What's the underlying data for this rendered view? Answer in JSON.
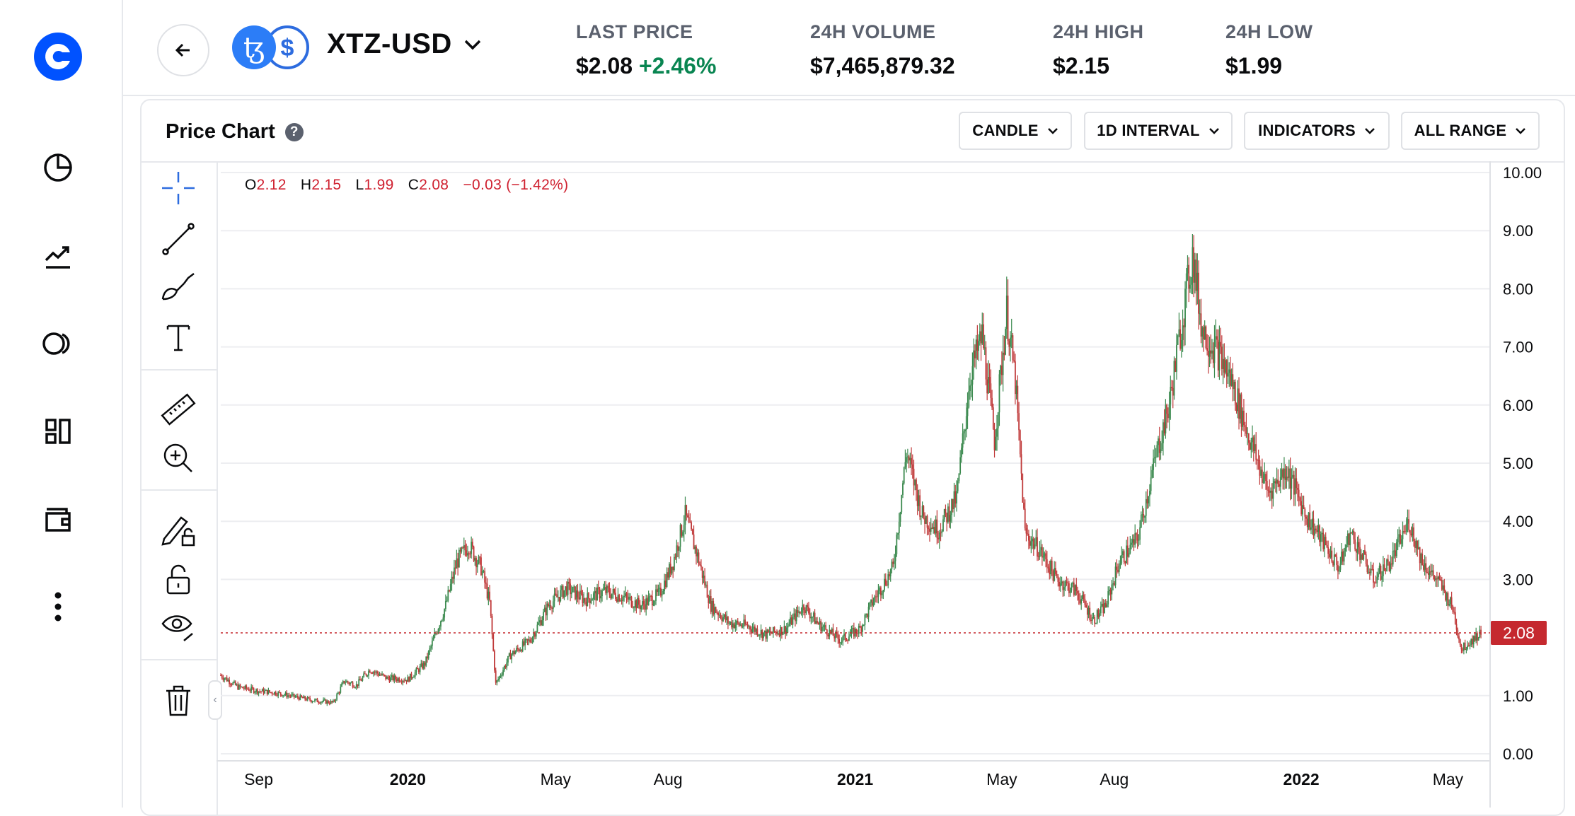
{
  "header": {
    "pair": "XTZ-USD",
    "stats": [
      {
        "label": "LAST PRICE",
        "value": "$2.08",
        "change": "+2.46%"
      },
      {
        "label": "24H VOLUME",
        "value": "$7,465,879.32"
      },
      {
        "label": "24H HIGH",
        "value": "$2.15"
      },
      {
        "label": "24H LOW",
        "value": "$1.99"
      }
    ]
  },
  "card": {
    "title": "Price Chart",
    "help": "?",
    "controls": [
      "CANDLE",
      "1D INTERVAL",
      "INDICATORS",
      "ALL RANGE"
    ]
  },
  "ohlc": {
    "o_label": "O",
    "o": "2.12",
    "h_label": "H",
    "h": "2.15",
    "l_label": "L",
    "l": "1.99",
    "c_label": "C",
    "c": "2.08",
    "change": "−0.03 (−1.42%)"
  },
  "icons": {
    "nav": [
      "coinbase-logo",
      "portfolio-pie-icon",
      "trade-chart-icon",
      "earn-icon",
      "dashboard-icon",
      "wallet-icon",
      "more-icon"
    ],
    "tools": [
      "crosshair-icon",
      "trend-line-icon",
      "brush-icon",
      "text-icon",
      "ruler-icon",
      "zoom-in-icon",
      "lock-drawing-icon",
      "unlock-icon",
      "eye-icon",
      "trash-icon"
    ]
  },
  "colors": {
    "up": "#3c8a4f",
    "down": "#c03a3a",
    "brand": "#0052ff",
    "positive_text": "#098551",
    "last_price_tag": "#c5292f"
  },
  "chart_data": {
    "type": "candlestick",
    "interval": "1D",
    "range": "ALL",
    "ylim": [
      0,
      10
    ],
    "y_ticks": [
      "10.00",
      "9.00",
      "8.00",
      "7.00",
      "6.00",
      "5.00",
      "4.00",
      "3.00",
      "1.00",
      "0.00"
    ],
    "x_ticks": [
      {
        "label": "Sep",
        "date": "2019-09",
        "major": false
      },
      {
        "label": "2020",
        "date": "2020-01",
        "major": true
      },
      {
        "label": "May",
        "date": "2020-05",
        "major": false
      },
      {
        "label": "Aug",
        "date": "2020-08",
        "major": false
      },
      {
        "label": "2021",
        "date": "2021-01",
        "major": true
      },
      {
        "label": "May",
        "date": "2021-05",
        "major": false
      },
      {
        "label": "Aug",
        "date": "2021-08",
        "major": false
      },
      {
        "label": "2022",
        "date": "2022-01",
        "major": true
      },
      {
        "label": "May",
        "date": "2022-05",
        "major": false
      }
    ],
    "last_price": 2.08,
    "last_price_label": "2.08",
    "close_series": [
      [
        "2019-08-01",
        1.35
      ],
      [
        "2019-08-15",
        1.15
      ],
      [
        "2019-09-01",
        1.08
      ],
      [
        "2019-09-15",
        1.05
      ],
      [
        "2019-10-01",
        0.98
      ],
      [
        "2019-10-15",
        0.92
      ],
      [
        "2019-11-01",
        0.88
      ],
      [
        "2019-11-10",
        1.25
      ],
      [
        "2019-11-20",
        1.18
      ],
      [
        "2019-12-01",
        1.45
      ],
      [
        "2019-12-15",
        1.3
      ],
      [
        "2020-01-01",
        1.28
      ],
      [
        "2020-01-15",
        1.55
      ],
      [
        "2020-02-01",
        2.55
      ],
      [
        "2020-02-10",
        3.3
      ],
      [
        "2020-02-20",
        3.6
      ],
      [
        "2020-03-01",
        3.2
      ],
      [
        "2020-03-08",
        2.6
      ],
      [
        "2020-03-13",
        1.2
      ],
      [
        "2020-03-25",
        1.7
      ],
      [
        "2020-04-10",
        1.95
      ],
      [
        "2020-04-25",
        2.55
      ],
      [
        "2020-05-10",
        2.85
      ],
      [
        "2020-05-25",
        2.65
      ],
      [
        "2020-06-10",
        2.8
      ],
      [
        "2020-06-25",
        2.7
      ],
      [
        "2020-07-10",
        2.55
      ],
      [
        "2020-07-25",
        2.75
      ],
      [
        "2020-08-05",
        3.3
      ],
      [
        "2020-08-15",
        4.1
      ],
      [
        "2020-08-25",
        3.4
      ],
      [
        "2020-09-05",
        2.55
      ],
      [
        "2020-09-20",
        2.25
      ],
      [
        "2020-10-05",
        2.2
      ],
      [
        "2020-10-20",
        2.05
      ],
      [
        "2020-11-05",
        2.15
      ],
      [
        "2020-11-20",
        2.55
      ],
      [
        "2020-12-01",
        2.25
      ],
      [
        "2020-12-20",
        1.95
      ],
      [
        "2021-01-05",
        2.15
      ],
      [
        "2021-01-15",
        2.6
      ],
      [
        "2021-02-01",
        3.2
      ],
      [
        "2021-02-12",
        5.2
      ],
      [
        "2021-02-25",
        4.1
      ],
      [
        "2021-03-10",
        3.85
      ],
      [
        "2021-03-25",
        4.4
      ],
      [
        "2021-04-05",
        6.5
      ],
      [
        "2021-04-15",
        7.2
      ],
      [
        "2021-04-25",
        5.4
      ],
      [
        "2021-05-05",
        7.6
      ],
      [
        "2021-05-12",
        6.4
      ],
      [
        "2021-05-20",
        3.8
      ],
      [
        "2021-06-01",
        3.5
      ],
      [
        "2021-06-15",
        3.0
      ],
      [
        "2021-07-01",
        2.8
      ],
      [
        "2021-07-15",
        2.3
      ],
      [
        "2021-07-25",
        2.55
      ],
      [
        "2021-08-05",
        3.3
      ],
      [
        "2021-08-20",
        3.7
      ],
      [
        "2021-09-05",
        5.2
      ],
      [
        "2021-09-15",
        6.0
      ],
      [
        "2021-09-25",
        7.4
      ],
      [
        "2021-10-04",
        8.6
      ],
      [
        "2021-10-12",
        7.3
      ],
      [
        "2021-10-25",
        6.9
      ],
      [
        "2021-11-05",
        6.4
      ],
      [
        "2021-11-20",
        5.4
      ],
      [
        "2021-12-05",
        4.5
      ],
      [
        "2021-12-20",
        4.9
      ],
      [
        "2022-01-05",
        4.1
      ],
      [
        "2022-01-20",
        3.6
      ],
      [
        "2022-02-01",
        3.2
      ],
      [
        "2022-02-10",
        3.8
      ],
      [
        "2022-02-20",
        3.4
      ],
      [
        "2022-03-01",
        3.0
      ],
      [
        "2022-03-15",
        3.3
      ],
      [
        "2022-03-30",
        4.0
      ],
      [
        "2022-04-10",
        3.3
      ],
      [
        "2022-04-25",
        2.9
      ],
      [
        "2022-05-05",
        2.5
      ],
      [
        "2022-05-12",
        1.8
      ],
      [
        "2022-05-20",
        1.95
      ],
      [
        "2022-05-28",
        2.08
      ]
    ]
  }
}
